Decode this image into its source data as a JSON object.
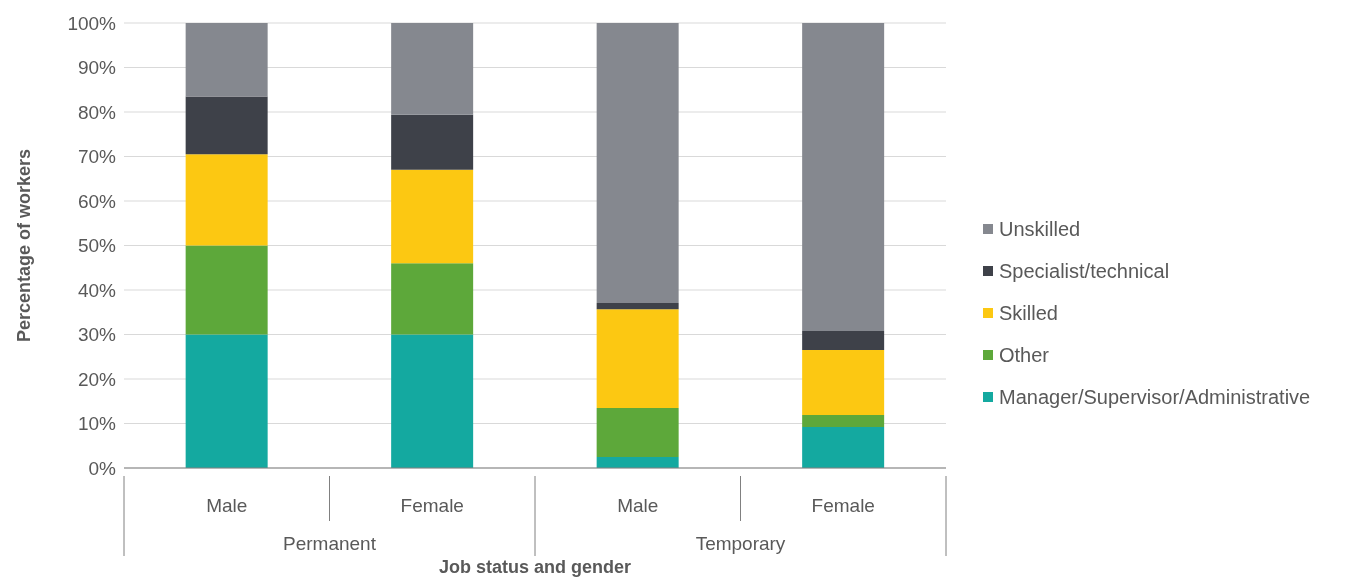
{
  "chart_data": {
    "type": "bar",
    "stacked": true,
    "xlabel": "Job status and gender",
    "ylabel": "Percentage of workers",
    "categories": [
      "Male",
      "Female",
      "Male",
      "Female"
    ],
    "annotations": [
      "Permanent",
      "Temporary"
    ],
    "series": [
      {
        "name": "Manager/Supervisor/Administrative",
        "color": "#14a9a0",
        "values": [
          30,
          30,
          2.5,
          9.2
        ]
      },
      {
        "name": "Other",
        "color": "#5da83a",
        "values": [
          20,
          16,
          11,
          2.7
        ]
      },
      {
        "name": "Skilled",
        "color": "#fcc812",
        "values": [
          20.5,
          21,
          22.2,
          14.6
        ]
      },
      {
        "name": "Specialist/technical",
        "color": "#3e4149",
        "values": [
          13,
          12.4,
          1.4,
          4.3
        ]
      },
      {
        "name": "Unskilled",
        "color": "#85888f",
        "values": [
          16.5,
          20.6,
          62.9,
          69.2
        ]
      }
    ],
    "ylim": [
      0,
      100
    ],
    "yticks": [
      {
        "value": 0,
        "label": "0%"
      },
      {
        "value": 10,
        "label": "10%"
      },
      {
        "value": 20,
        "label": "20%"
      },
      {
        "value": 30,
        "label": "30%"
      },
      {
        "value": 40,
        "label": "40%"
      },
      {
        "value": 50,
        "label": "50%"
      },
      {
        "value": 60,
        "label": "60%"
      },
      {
        "value": 70,
        "label": "70%"
      },
      {
        "value": 80,
        "label": "80%"
      },
      {
        "value": 90,
        "label": "90%"
      },
      {
        "value": 100,
        "label": "100%"
      }
    ],
    "grid": "y",
    "legend": "right"
  }
}
